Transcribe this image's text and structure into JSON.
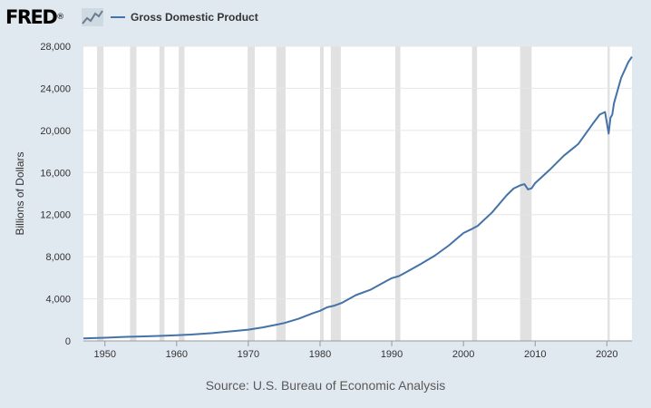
{
  "brand": {
    "logo_text": "FRED",
    "logo_mark": "®",
    "icon": "line-chart-icon"
  },
  "legend": {
    "label": "Gross Domestic Product",
    "color": "#4572a7"
  },
  "source_text": "Source: U.S. Bureau of Economic Analysis",
  "colors": {
    "background": "#e1e9f0",
    "plot_background": "#ffffff",
    "line": "#4572a7",
    "recession": "#e1e1e1",
    "grid": "#e6e6e6"
  },
  "chart_data": {
    "type": "line",
    "title": "",
    "xlabel": "",
    "ylabel": "Billions of Dollars",
    "xlim": [
      1947,
      2023.5
    ],
    "ylim": [
      0,
      28000
    ],
    "x_ticks": [
      1950,
      1960,
      1970,
      1980,
      1990,
      2000,
      2010,
      2020
    ],
    "x_tick_labels": [
      "1950",
      "1960",
      "1970",
      "1980",
      "1990",
      "2000",
      "2010",
      "2020"
    ],
    "y_ticks": [
      0,
      4000,
      8000,
      12000,
      16000,
      20000,
      24000,
      28000
    ],
    "y_tick_labels": [
      "0",
      "4,000",
      "8,000",
      "12,000",
      "16,000",
      "20,000",
      "24,000",
      "28,000"
    ],
    "grid": true,
    "legend": "top-left",
    "recessions": [
      [
        1948.9,
        1949.8
      ],
      [
        1953.5,
        1954.4
      ],
      [
        1957.6,
        1958.3
      ],
      [
        1960.3,
        1961.1
      ],
      [
        1969.9,
        1970.9
      ],
      [
        1973.9,
        1975.2
      ],
      [
        1980.0,
        1980.5
      ],
      [
        1981.5,
        1982.9
      ],
      [
        1990.5,
        1991.2
      ],
      [
        2001.2,
        2001.9
      ],
      [
        2007.9,
        2009.5
      ],
      [
        2020.1,
        2020.4
      ]
    ],
    "series": [
      {
        "name": "Gross Domestic Product",
        "x": [
          1947,
          1950,
          1953,
          1955,
          1958,
          1960,
          1962,
          1965,
          1968,
          1970,
          1972,
          1974,
          1975,
          1977,
          1979,
          1980,
          1981,
          1982,
          1983,
          1985,
          1987,
          1989,
          1990,
          1991,
          1992,
          1994,
          1996,
          1998,
          2000,
          2001,
          2002,
          2004,
          2006,
          2007,
          2008,
          2008.5,
          2009,
          2009.5,
          2010,
          2012,
          2014,
          2016,
          2018,
          2019,
          2019.75,
          2020.25,
          2020.5,
          2020.75,
          2021,
          2022,
          2023,
          2023.5
        ],
        "values": [
          243,
          300,
          390,
          425,
          480,
          540,
          600,
          740,
          940,
          1070,
          1280,
          1550,
          1700,
          2100,
          2640,
          2860,
          3200,
          3350,
          3600,
          4350,
          4850,
          5600,
          5960,
          6160,
          6520,
          7290,
          8100,
          9090,
          10250,
          10580,
          10940,
          12220,
          13820,
          14480,
          14800,
          14900,
          14400,
          14500,
          14990,
          16250,
          17600,
          18700,
          20600,
          21500,
          21750,
          19700,
          21200,
          21500,
          22600,
          25000,
          26500,
          27000
        ]
      }
    ]
  }
}
